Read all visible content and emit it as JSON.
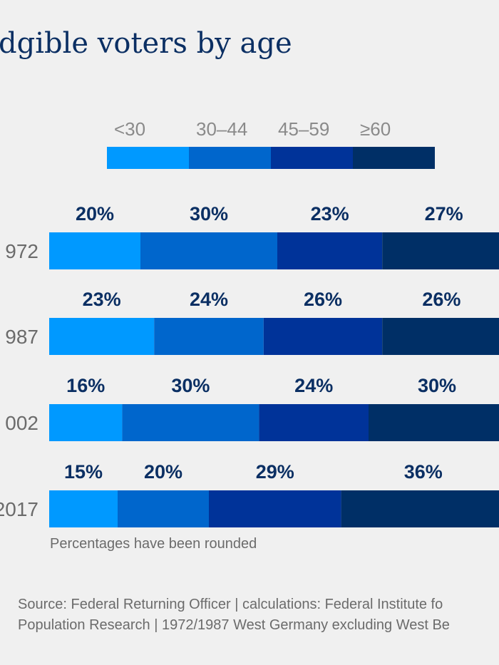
{
  "title": "dgible voters by age",
  "note": "Percentages have been rounded",
  "source_line1": "Source: Federal Returning Officer | calculations: Federal Institute fo",
  "source_line2": "Population Research | 1972/1987 West Germany excluding West Be",
  "chart_data": {
    "type": "bar",
    "stacked": true,
    "orientation": "horizontal",
    "categories": [
      "972",
      "987",
      "002",
      "2017"
    ],
    "series": [
      {
        "name": "<30",
        "color": "#0099ff",
        "values": [
          20,
          23,
          16,
          15
        ],
        "labels": [
          "20%",
          "23%",
          "16%",
          "15%"
        ]
      },
      {
        "name": "30–44",
        "color": "#0066cc",
        "values": [
          30,
          24,
          30,
          20
        ],
        "labels": [
          "30%",
          "24%",
          "30%",
          "20%"
        ]
      },
      {
        "name": "45–59",
        "color": "#003399",
        "values": [
          23,
          26,
          24,
          29
        ],
        "labels": [
          "23%",
          "26%",
          "24%",
          "29%"
        ]
      },
      {
        "name": "≥60",
        "color": "#002f66",
        "values": [
          27,
          26,
          30,
          36
        ],
        "labels": [
          "27%",
          "26%",
          "30%",
          "36%"
        ]
      }
    ],
    "legend_position": "top"
  }
}
